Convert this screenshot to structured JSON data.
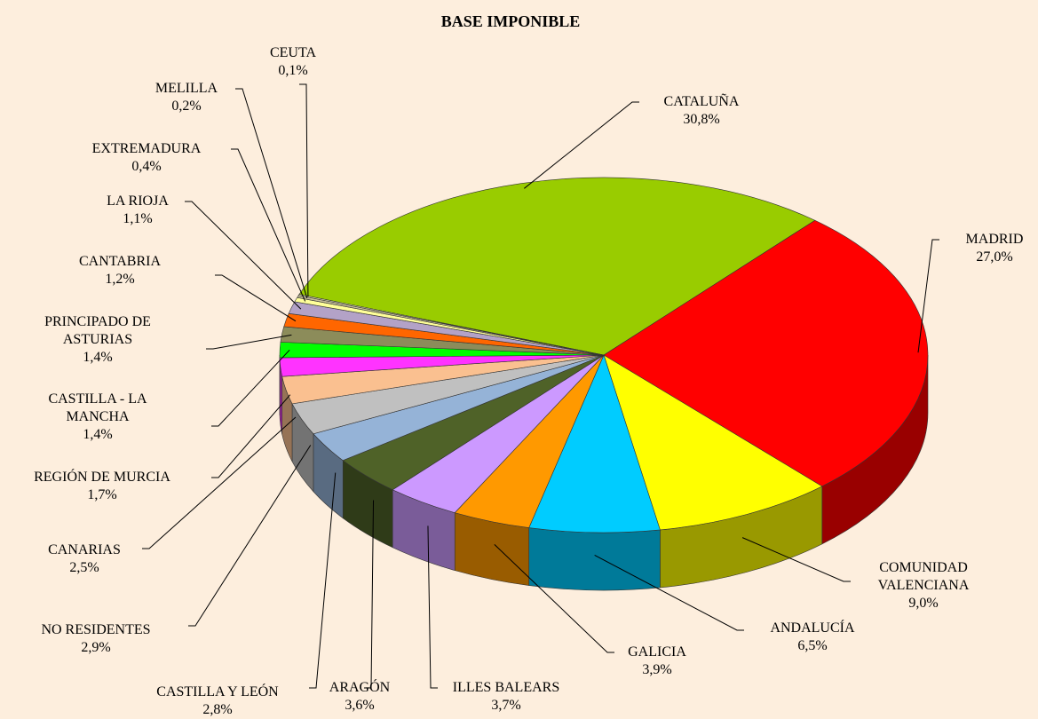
{
  "chart_data": {
    "type": "pie",
    "title": "BASE IMPONIBLE",
    "categories": [
      "CATALUÑA",
      "MADRID",
      "COMUNIDAD VALENCIANA",
      "ANDALUCÍA",
      "GALICIA",
      "ILLES BALEARS",
      "ARAGÓN",
      "CASTILLA Y LEÓN",
      "NO RESIDENTES",
      "CANARIAS",
      "REGIÓN DE MURCIA",
      "CASTILLA - LA MANCHA",
      "PRINCIPADO DE ASTURIAS",
      "CANTABRIA",
      "LA RIOJA",
      "EXTREMADURA",
      "MELILLA",
      "CEUTA"
    ],
    "values": [
      30.8,
      27.0,
      9.0,
      6.5,
      3.9,
      3.7,
      3.6,
      2.8,
      2.9,
      2.5,
      1.7,
      1.4,
      1.4,
      1.2,
      1.1,
      0.4,
      0.2,
      0.1
    ],
    "value_labels": [
      "30,8%",
      "27,0%",
      "9,0%",
      "6,5%",
      "3,9%",
      "3,7%",
      "3,6%",
      "2,8%",
      "2,9%",
      "2,5%",
      "1,7%",
      "1,4%",
      "1,4%",
      "1,2%",
      "1,1%",
      "0,4%",
      "0,2%",
      "0,1%"
    ],
    "colors": [
      "#99cc00",
      "#ff0000",
      "#ffff00",
      "#00ccff",
      "#ff9900",
      "#cc99ff",
      "#4f6228",
      "#95b3d7",
      "#c0c0c0",
      "#fac090",
      "#ff33ff",
      "#00ff00",
      "#8c8c5a",
      "#ff6600",
      "#b3a2c7",
      "#ffff99",
      "#c4bd97",
      "#ffffcc"
    ]
  }
}
